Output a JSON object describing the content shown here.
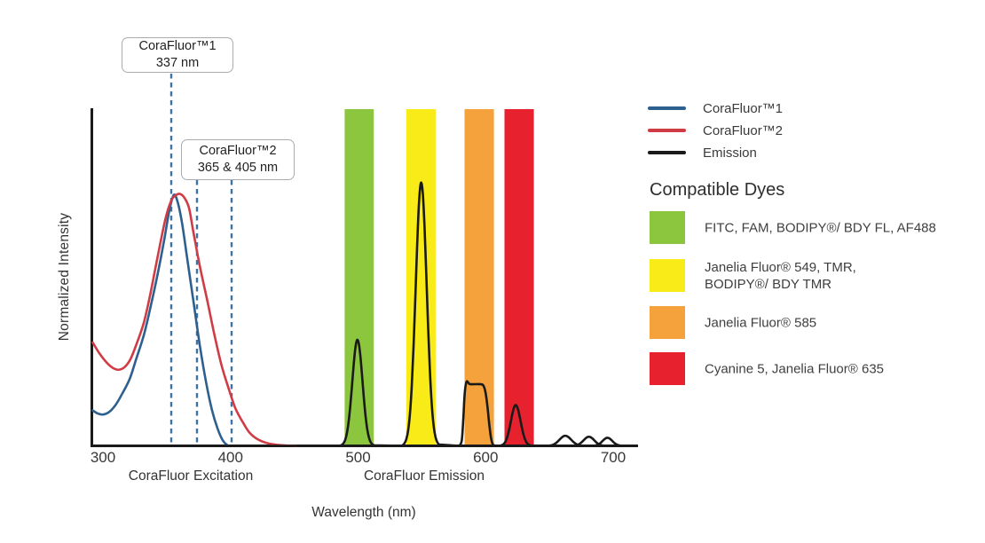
{
  "figure": {
    "background": "#ffffff",
    "y_axis_label": "Normalized Intensity",
    "x_axis_label": "Wavelength (nm)",
    "x_section_labels": [
      {
        "id": "excitation",
        "label": "CoraFluor Excitation"
      },
      {
        "id": "emission",
        "label": "CoraFluor Emission"
      }
    ]
  },
  "callouts": [
    {
      "line1": "CoraFluor™1",
      "line2": "337 nm",
      "marker_nm": [
        337
      ]
    },
    {
      "line1": "CoraFluor™2",
      "line2": "365 & 405 nm",
      "marker_nm": [
        365,
        405
      ]
    }
  ],
  "legend": {
    "entries": [
      {
        "label": "CoraFluor™1",
        "color": "#2e608f"
      },
      {
        "label": "CoraFluor™2",
        "color": "#d03c46"
      },
      {
        "label": "Emission",
        "color": "#1a1a1a"
      }
    ]
  },
  "dyes": {
    "heading": "Compatible Dyes",
    "items": [
      {
        "color": "#8cc63f",
        "lines": [
          "FITC, FAM, BODIPY®/ BDY FL, AF488"
        ]
      },
      {
        "color": "#f9eb17",
        "lines": [
          "Janelia Fluor® 549, TMR,",
          "BODIPY®/ BDY TMR"
        ]
      },
      {
        "color": "#f6a23c",
        "lines": [
          "Janelia Fluor® 585"
        ]
      },
      {
        "color": "#e8212e",
        "lines": [
          "Cyanine 5, Janelia Fluor® 635"
        ]
      }
    ]
  },
  "chart_data": {
    "type": "line",
    "title": "CoraFluor excitation and emission spectra with compatible dye filter windows",
    "xlabel": "Wavelength (nm)",
    "ylabel": "Normalized Intensity",
    "x_ticks": [
      300,
      400,
      500,
      600,
      700
    ],
    "xlim": [
      290,
      718
    ],
    "ylim": [
      0,
      1
    ],
    "grid": false,
    "legend_position": "top-right",
    "marker_line_color": "#3e72a2",
    "axis_color": "#1a1a1a",
    "excitation_markers_nm": {
      "CoraFluor™1": [
        337
      ],
      "CoraFluor™2": [
        365,
        405
      ]
    },
    "excitation_series": [
      {
        "name": "CoraFluor™1",
        "color": "#2e608f",
        "points": [
          [
            292,
            0.105
          ],
          [
            296,
            0.096
          ],
          [
            300,
            0.093
          ],
          [
            305,
            0.101
          ],
          [
            310,
            0.122
          ],
          [
            315,
            0.154
          ],
          [
            321,
            0.199
          ],
          [
            326,
            0.257
          ],
          [
            332,
            0.328
          ],
          [
            337,
            0.407
          ],
          [
            343,
            0.512
          ],
          [
            348,
            0.611
          ],
          [
            352,
            0.698
          ],
          [
            355.5,
            0.745
          ],
          [
            358.5,
            0.725
          ],
          [
            362,
            0.662
          ],
          [
            366,
            0.558
          ],
          [
            371,
            0.428
          ],
          [
            376,
            0.297
          ],
          [
            381,
            0.186
          ],
          [
            385.5,
            0.106
          ],
          [
            390,
            0.05
          ],
          [
            394,
            0.016
          ],
          [
            397.5,
            0.002
          ],
          [
            399,
            0
          ]
        ]
      },
      {
        "name": "CoraFluor™2",
        "color": "#d03c46",
        "points": [
          [
            292,
            0.307
          ],
          [
            297,
            0.276
          ],
          [
            303,
            0.247
          ],
          [
            308,
            0.231
          ],
          [
            312.5,
            0.226
          ],
          [
            317,
            0.234
          ],
          [
            321.5,
            0.257
          ],
          [
            326,
            0.299
          ],
          [
            332,
            0.365
          ],
          [
            337,
            0.448
          ],
          [
            343,
            0.564
          ],
          [
            349,
            0.674
          ],
          [
            353.5,
            0.728
          ],
          [
            357,
            0.744
          ],
          [
            360.5,
            0.748
          ],
          [
            364,
            0.736
          ],
          [
            367.5,
            0.706
          ],
          [
            371,
            0.633
          ],
          [
            376,
            0.533
          ],
          [
            382,
            0.428
          ],
          [
            387.5,
            0.328
          ],
          [
            393,
            0.239
          ],
          [
            399,
            0.165
          ],
          [
            404,
            0.11
          ],
          [
            410,
            0.068
          ],
          [
            415,
            0.039
          ],
          [
            422,
            0.018
          ],
          [
            430,
            0.007
          ],
          [
            440,
            0.002
          ],
          [
            452,
            0
          ]
        ]
      }
    ],
    "emission_series": {
      "name": "Emission",
      "color": "#1a1a1a",
      "peaks": [
        {
          "shape": "gaussian",
          "center_nm": 499.5,
          "height": 0.315,
          "sigma_nm": 4.0
        },
        {
          "shape": "gaussian",
          "center_nm": 549.5,
          "height": 0.782,
          "sigma_nm": 4.3
        },
        {
          "shape": "plateau",
          "points": [
            [
              579.2,
              0
            ],
            [
              581.3,
              0.016
            ],
            [
              582.6,
              0.087
            ],
            [
              583.3,
              0.139
            ],
            [
              584.0,
              0.171
            ],
            [
              584.7,
              0.186
            ],
            [
              585.4,
              0.192
            ],
            [
              586.8,
              0.186
            ],
            [
              588.2,
              0.183
            ],
            [
              596.5,
              0.183
            ],
            [
              598.6,
              0.176
            ],
            [
              600.0,
              0.157
            ],
            [
              601.4,
              0.118
            ],
            [
              602.8,
              0.066
            ],
            [
              604.2,
              0.024
            ],
            [
              605.6,
              0.005
            ],
            [
              607.6,
              0
            ]
          ]
        },
        {
          "shape": "gaussian",
          "center_nm": 623.6,
          "height": 0.121,
          "sigma_nm": 3.8
        },
        {
          "shape": "gaussian",
          "center_nm": 662.5,
          "height": 0.03,
          "sigma_nm": 4.6
        },
        {
          "shape": "gaussian",
          "center_nm": 681.0,
          "height": 0.027,
          "sigma_nm": 4.2
        },
        {
          "shape": "gaussian",
          "center_nm": 695.5,
          "height": 0.024,
          "sigma_nm": 3.8
        }
      ]
    },
    "filter_bands": [
      {
        "dye_group": "FITC, FAM, BODIPY®/ BDY FL, AF488",
        "color": "#8cc63f",
        "from_nm": 489.5,
        "to_nm": 512.3
      },
      {
        "dye_group": "Janelia Fluor® 549, TMR, BODIPY®/ BDY TMR",
        "color": "#f9eb17",
        "from_nm": 537.8,
        "to_nm": 560.8
      },
      {
        "dye_group": "Janelia Fluor® 585",
        "color": "#f6a23c",
        "from_nm": 583.5,
        "to_nm": 606.5
      },
      {
        "dye_group": "Cyanine 5, Janelia Fluor® 635",
        "color": "#e8212e",
        "from_nm": 614.8,
        "to_nm": 637.8
      }
    ]
  }
}
